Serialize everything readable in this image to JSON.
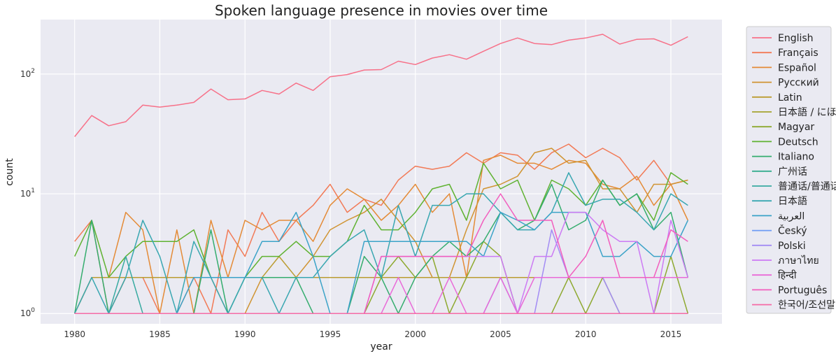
{
  "chart_data": {
    "type": "line",
    "title": "Spoken language presence in movies over time",
    "xlabel": "year",
    "ylabel": "count",
    "yscale": "log",
    "xlim": [
      1978,
      2018
    ],
    "ylim": [
      0.82,
      285
    ],
    "x_ticks": [
      "1980",
      "1985",
      "1990",
      "1995",
      "2000",
      "2005",
      "2010",
      "2015"
    ],
    "y_ticks": [
      {
        "base": "10",
        "exp": "0"
      },
      {
        "base": "10",
        "exp": "1"
      },
      {
        "base": "10",
        "exp": "2"
      }
    ],
    "legend_position": "right",
    "background_color": "#eaeaf2",
    "grid": true,
    "x": [
      1980,
      1981,
      1982,
      1983,
      1984,
      1985,
      1986,
      1987,
      1988,
      1989,
      1990,
      1991,
      1992,
      1993,
      1994,
      1995,
      1996,
      1997,
      1998,
      1999,
      2000,
      2001,
      2002,
      2003,
      2004,
      2005,
      2006,
      2007,
      2008,
      2009,
      2010,
      2011,
      2012,
      2013,
      2014,
      2015,
      2016
    ],
    "series": [
      {
        "name": "English",
        "color": "#f77189",
        "values": [
          30,
          45,
          37,
          40,
          55,
          53,
          55,
          58,
          75,
          61,
          62,
          73,
          68,
          84,
          73,
          95,
          99,
          108,
          109,
          128,
          120,
          136,
          145,
          133,
          155,
          180,
          200,
          180,
          176,
          192,
          200,
          215,
          178,
          195,
          197,
          174,
          205
        ]
      },
      {
        "name": "Français",
        "color": "#f27a56",
        "values": [
          4,
          6,
          1,
          2,
          2,
          1,
          1,
          2,
          1,
          5,
          3,
          7,
          4,
          6,
          8,
          12,
          7,
          9,
          8,
          13,
          17,
          16,
          17,
          22,
          18,
          22,
          21,
          16,
          22,
          26,
          20,
          24,
          20,
          13,
          19,
          12,
          13
        ]
      },
      {
        "name": "Español",
        "color": "#e48b37",
        "values": [
          1,
          2,
          2,
          7,
          5,
          1,
          5,
          1,
          6,
          2,
          6,
          5,
          6,
          6,
          4,
          8,
          11,
          9,
          6,
          8,
          12,
          7,
          10,
          2,
          19,
          21,
          18,
          18,
          16,
          19,
          18,
          12,
          11,
          14,
          8,
          12,
          6
        ]
      },
      {
        "name": "Русский",
        "color": "#d09432",
        "values": [
          1,
          1,
          1,
          2,
          2,
          2,
          2,
          2,
          2,
          1,
          1,
          2,
          2,
          2,
          3,
          5,
          6,
          7,
          9,
          6,
          4,
          2,
          2,
          5,
          11,
          12,
          14,
          22,
          24,
          18,
          19,
          11,
          11,
          7,
          12,
          12,
          13
        ]
      },
      {
        "name": "Latin",
        "color": "#bb9c31",
        "values": [
          1,
          2,
          2,
          2,
          2,
          2,
          2,
          2,
          2,
          2,
          2,
          2,
          3,
          2,
          2,
          2,
          2,
          2,
          2,
          2,
          2,
          2,
          2,
          2,
          2,
          2,
          2,
          2,
          2,
          2,
          2,
          2,
          2,
          2,
          2,
          2,
          2
        ]
      },
      {
        "name": "日本語 / にほんご",
        "color": "#a6a330",
        "values": [
          1,
          1,
          1,
          1,
          1,
          1,
          1,
          1,
          1,
          1,
          1,
          1,
          1,
          1,
          1,
          1,
          1,
          1,
          1,
          1,
          1,
          1,
          1,
          1,
          1,
          1,
          1,
          1,
          1,
          1,
          1,
          1,
          1,
          1,
          1,
          1,
          1
        ]
      },
      {
        "name": "Magyar",
        "color": "#8ea930",
        "values": [
          1,
          1,
          1,
          1,
          1,
          1,
          1,
          1,
          1,
          1,
          1,
          1,
          1,
          1,
          1,
          1,
          1,
          1,
          2,
          3,
          2,
          3,
          1,
          2,
          4,
          3,
          1,
          1,
          1,
          2,
          1,
          2,
          1,
          1,
          1,
          3,
          1
        ]
      },
      {
        "name": "Deutsch",
        "color": "#5fb231",
        "values": [
          3,
          6,
          2,
          3,
          4,
          4,
          4,
          5,
          2,
          2,
          2,
          3,
          3,
          4,
          3,
          3,
          4,
          8,
          5,
          5,
          7,
          11,
          12,
          6,
          18,
          11,
          13,
          6,
          13,
          11,
          8,
          13,
          8,
          10,
          6,
          15,
          12
        ]
      },
      {
        "name": "Italiano",
        "color": "#35ad6e",
        "values": [
          1,
          6,
          1,
          1,
          1,
          1,
          1,
          1,
          5,
          1,
          2,
          2,
          2,
          2,
          1,
          1,
          1,
          3,
          2,
          1,
          2,
          3,
          4,
          3,
          4,
          7,
          5,
          6,
          12,
          5,
          6,
          13,
          8,
          10,
          5,
          7,
          2
        ]
      },
      {
        "name": "广州话",
        "color": "#36ad8e",
        "values": [
          1,
          1,
          1,
          1,
          1,
          1,
          1,
          1,
          1,
          1,
          1,
          1,
          1,
          1,
          1,
          1,
          1,
          1,
          1,
          1,
          1,
          1,
          1,
          1,
          1,
          1,
          1,
          1,
          1,
          1,
          1,
          1,
          1,
          1,
          1,
          1,
          1
        ]
      },
      {
        "name": "普通话/普通话",
        "color": "#37aaa1",
        "values": [
          1,
          1,
          1,
          3,
          1,
          1,
          1,
          1,
          1,
          1,
          1,
          1,
          1,
          1,
          1,
          1,
          1,
          1,
          1,
          1,
          1,
          1,
          1,
          1,
          1,
          1,
          1,
          1,
          1,
          1,
          1,
          1,
          1,
          1,
          1,
          1,
          1
        ]
      },
      {
        "name": "日本語",
        "color": "#39a7b1",
        "values": [
          1,
          2,
          1,
          2,
          6,
          3,
          1,
          4,
          2,
          1,
          2,
          2,
          1,
          2,
          2,
          3,
          4,
          5,
          2,
          8,
          3,
          8,
          8,
          10,
          10,
          7,
          5,
          5,
          7,
          15,
          8,
          9,
          9,
          7,
          5,
          10,
          8
        ]
      },
      {
        "name": "العربية",
        "color": "#3ba3c8",
        "values": [
          1,
          1,
          1,
          1,
          1,
          1,
          1,
          2,
          2,
          2,
          2,
          4,
          4,
          7,
          3,
          1,
          1,
          4,
          4,
          4,
          4,
          4,
          4,
          4,
          3,
          7,
          6,
          5,
          7,
          7,
          7,
          3,
          3,
          4,
          3,
          3,
          6
        ]
      },
      {
        "name": "Český",
        "color": "#6e9cf4",
        "values": [
          1,
          1,
          1,
          1,
          1,
          1,
          1,
          1,
          1,
          1,
          1,
          1,
          1,
          1,
          1,
          1,
          1,
          1,
          1,
          1,
          1,
          1,
          1,
          1,
          1,
          2,
          1,
          1,
          1,
          1,
          1,
          1,
          1,
          1,
          1,
          1,
          1
        ]
      },
      {
        "name": "Polski",
        "color": "#a38cf4",
        "values": [
          1,
          1,
          1,
          1,
          1,
          1,
          1,
          1,
          1,
          1,
          1,
          1,
          1,
          1,
          1,
          1,
          1,
          1,
          1,
          1,
          1,
          1,
          1,
          1,
          1,
          1,
          1,
          1,
          5,
          2,
          2,
          2,
          1,
          1,
          1,
          1,
          1
        ]
      },
      {
        "name": "ภาษาไทย",
        "color": "#cc7af4",
        "values": [
          1,
          1,
          1,
          1,
          1,
          1,
          1,
          1,
          1,
          1,
          1,
          1,
          1,
          1,
          1,
          1,
          1,
          1,
          3,
          3,
          3,
          3,
          3,
          3,
          3,
          3,
          1,
          3,
          3,
          7,
          7,
          5,
          4,
          4,
          1,
          6,
          2
        ]
      },
      {
        "name": "हिन्दी",
        "color": "#e96ad8",
        "values": [
          1,
          1,
          1,
          1,
          1,
          1,
          1,
          1,
          1,
          1,
          1,
          1,
          1,
          1,
          1,
          1,
          1,
          1,
          1,
          2,
          1,
          1,
          2,
          1,
          1,
          2,
          1,
          2,
          2,
          2,
          2,
          2,
          2,
          2,
          2,
          2,
          2
        ]
      },
      {
        "name": "Português",
        "color": "#f25ebe",
        "values": [
          1,
          1,
          1,
          1,
          1,
          1,
          1,
          1,
          1,
          1,
          1,
          1,
          1,
          1,
          1,
          1,
          1,
          1,
          3,
          3,
          3,
          3,
          3,
          3,
          6,
          10,
          6,
          6,
          6,
          2,
          3,
          6,
          2,
          2,
          2,
          5,
          4
        ]
      },
      {
        "name": "한국어/조선말",
        "color": "#f56ba6",
        "values": [
          1,
          1,
          1,
          1,
          1,
          1,
          1,
          1,
          1,
          1,
          1,
          1,
          1,
          1,
          1,
          1,
          1,
          1,
          1,
          1,
          1,
          1,
          1,
          1,
          1,
          1,
          1,
          1,
          1,
          1,
          1,
          1,
          1,
          1,
          1,
          1,
          1
        ]
      }
    ]
  }
}
